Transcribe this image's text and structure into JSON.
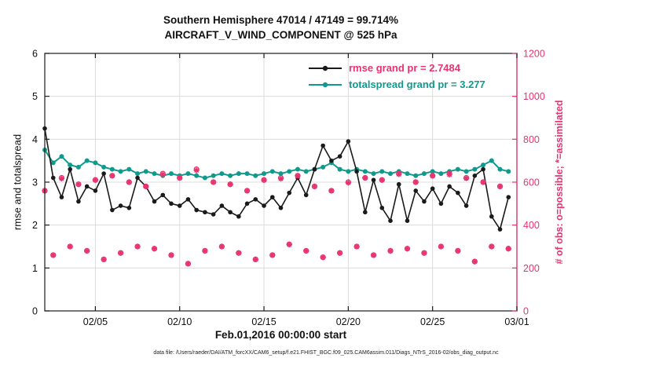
{
  "figure": {
    "title_line1": "Southern Hemisphere 47014 / 47149 = 99.714%",
    "title_line2": "AIRCRAFT_V_WIND_COMPONENT @ 525 hPa",
    "xlabel": "Feb.01,2016 00:00:00 start",
    "ylabel_left": "rmse and totalspread",
    "ylabel_right": "# of obs: o=possible; *=assimilated",
    "datafile_caption": "data file: /Users/raeder/DAI/ATM_forcXX/CAM6_setup/f.e21.FHIST_BGC.f09_025.CAM6assim.011/Diags_NTrS_2016-02/obs_diag_output.nc"
  },
  "legend": {
    "rmse_label": "rmse grand pr = 2.7484",
    "totalspread_label": "totalspread grand pr = 3.277"
  },
  "colors": {
    "rmse": "#1a1a1a",
    "totalspread": "#109a8d",
    "obs": "#e8336e",
    "legend_rmse_text": "#e8336e",
    "legend_totalspread_text": "#109a8d",
    "axis": "#1a1a1a",
    "grid": "#dcdcdc"
  },
  "chart_data": {
    "type": "line",
    "title": "Southern Hemisphere 47014 / 47149 = 99.714% | AIRCRAFT_V_WIND_COMPONENT @ 525 hPa",
    "xlabel": "Feb.01,2016 00:00:00 start",
    "ylabel_left": "rmse and totalspread",
    "ylabel_right": "# of obs: o=possible; *=assimilated",
    "xlim": [
      2,
      30
    ],
    "ylim_left": [
      0,
      6
    ],
    "ylim_right": [
      0,
      1200
    ],
    "xticks": [
      5,
      10,
      15,
      20,
      25,
      30
    ],
    "xtick_labels": [
      "02/05",
      "02/10",
      "02/15",
      "02/20",
      "02/25",
      "03/01"
    ],
    "yticks_left": [
      0,
      1,
      2,
      3,
      4,
      5,
      6
    ],
    "yticks_right": [
      0,
      200,
      400,
      600,
      800,
      1000,
      1200
    ],
    "grid": true,
    "legend_position": "upper center-right",
    "x_days": [
      2,
      2.5,
      3,
      3.5,
      4,
      4.5,
      5,
      5.5,
      6,
      6.5,
      7,
      7.5,
      8,
      8.5,
      9,
      9.5,
      10,
      10.5,
      11,
      11.5,
      12,
      12.5,
      13,
      13.5,
      14,
      14.5,
      15,
      15.5,
      16,
      16.5,
      17,
      17.5,
      18,
      18.5,
      19,
      19.5,
      20,
      20.5,
      21,
      21.5,
      22,
      22.5,
      23,
      23.5,
      24,
      24.5,
      25,
      25.5,
      26,
      26.5,
      27,
      27.5,
      28,
      28.5,
      29,
      29.5
    ],
    "series": [
      {
        "name": "rmse",
        "grand_mean": 2.7484,
        "color": "#1a1a1a",
        "values": [
          4.25,
          3.1,
          2.65,
          3.3,
          2.55,
          2.9,
          2.8,
          3.2,
          2.35,
          2.45,
          2.4,
          3.1,
          2.9,
          2.55,
          2.7,
          2.5,
          2.45,
          2.6,
          2.35,
          2.3,
          2.25,
          2.45,
          2.3,
          2.2,
          2.5,
          2.6,
          2.45,
          2.65,
          2.4,
          2.75,
          3.1,
          2.7,
          3.3,
          3.85,
          3.5,
          3.6,
          3.95,
          3.25,
          2.3,
          3.05,
          2.4,
          2.1,
          2.95,
          2.1,
          2.8,
          2.55,
          2.85,
          2.5,
          2.9,
          2.75,
          2.45,
          3.15,
          3.3,
          2.2,
          1.9,
          2.65
        ]
      },
      {
        "name": "totalspread",
        "grand_mean": 3.277,
        "color": "#109a8d",
        "values": [
          3.75,
          3.45,
          3.6,
          3.4,
          3.35,
          3.5,
          3.45,
          3.35,
          3.3,
          3.25,
          3.3,
          3.2,
          3.25,
          3.2,
          3.15,
          3.2,
          3.15,
          3.2,
          3.15,
          3.1,
          3.15,
          3.2,
          3.15,
          3.2,
          3.2,
          3.15,
          3.2,
          3.25,
          3.2,
          3.25,
          3.3,
          3.25,
          3.3,
          3.35,
          3.45,
          3.3,
          3.25,
          3.3,
          3.25,
          3.2,
          3.25,
          3.2,
          3.25,
          3.2,
          3.15,
          3.2,
          3.25,
          3.2,
          3.25,
          3.3,
          3.25,
          3.3,
          3.4,
          3.5,
          3.3,
          3.25
        ]
      }
    ],
    "obs_counts": {
      "color": "#e8336e",
      "possible_total": 47149,
      "assimilated_total": 47014,
      "assimilated_pct": 99.714,
      "possible": [
        560,
        260,
        620,
        300,
        590,
        280,
        610,
        240,
        630,
        270,
        600,
        300,
        580,
        290,
        640,
        260,
        620,
        220,
        660,
        280,
        600,
        300,
        590,
        270,
        560,
        240,
        610,
        260,
        620,
        310,
        630,
        280,
        580,
        250,
        560,
        270,
        600,
        300,
        620,
        260,
        610,
        280,
        640,
        290,
        600,
        270,
        630,
        300,
        640,
        280,
        620,
        230,
        600,
        300,
        580,
        290
      ],
      "assimilated": [
        560,
        260,
        617,
        300,
        590,
        280,
        610,
        240,
        630,
        270,
        600,
        300,
        580,
        290,
        636,
        260,
        620,
        220,
        655,
        280,
        600,
        300,
        590,
        270,
        560,
        240,
        610,
        260,
        616,
        310,
        630,
        280,
        580,
        250,
        560,
        270,
        597,
        300,
        620,
        260,
        610,
        280,
        637,
        290,
        600,
        270,
        630,
        300,
        635,
        280,
        618,
        230,
        600,
        300,
        580,
        290
      ]
    }
  }
}
